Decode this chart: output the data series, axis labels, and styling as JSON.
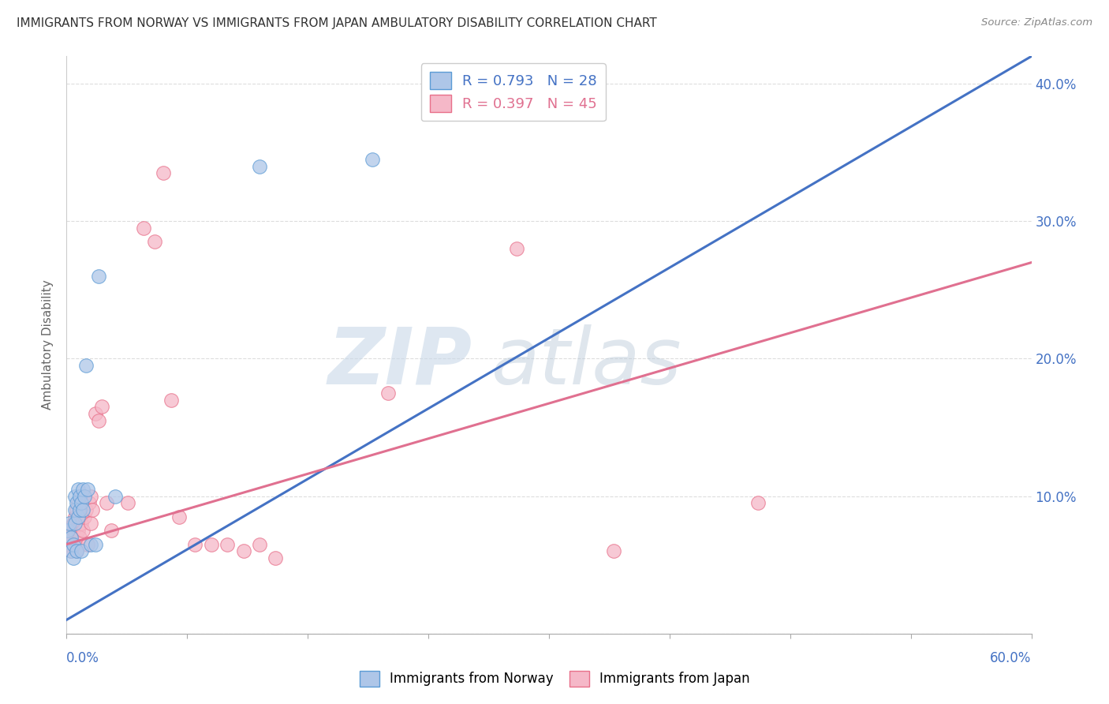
{
  "title": "IMMIGRANTS FROM NORWAY VS IMMIGRANTS FROM JAPAN AMBULATORY DISABILITY CORRELATION CHART",
  "source": "Source: ZipAtlas.com",
  "ylabel": "Ambulatory Disability",
  "xmin": 0.0,
  "xmax": 0.6,
  "ymin": 0.0,
  "ymax": 0.42,
  "ytick_vals": [
    0.0,
    0.1,
    0.2,
    0.3,
    0.4
  ],
  "ytick_labels": [
    "",
    "10.0%",
    "20.0%",
    "30.0%",
    "40.0%"
  ],
  "norway_fill_color": "#aec6e8",
  "norway_edge_color": "#5b9bd5",
  "japan_fill_color": "#f5b8c8",
  "japan_edge_color": "#e8708a",
  "norway_line_color": "#4472c4",
  "japan_line_color": "#e07090",
  "norway_R": 0.793,
  "norway_N": 28,
  "japan_R": 0.397,
  "japan_N": 45,
  "axis_label_color": "#4472c4",
  "title_color": "#333333",
  "source_color": "#888888",
  "background_color": "#ffffff",
  "grid_color": "#dddddd",
  "norway_line_x0": 0.0,
  "norway_line_y0": 0.01,
  "norway_line_x1": 0.6,
  "norway_line_y1": 0.42,
  "japan_line_x0": 0.0,
  "japan_line_y0": 0.065,
  "japan_line_x1": 0.6,
  "japan_line_y1": 0.27,
  "norway_scatter_x": [
    0.001,
    0.002,
    0.003,
    0.003,
    0.004,
    0.004,
    0.005,
    0.005,
    0.005,
    0.006,
    0.006,
    0.007,
    0.007,
    0.008,
    0.008,
    0.009,
    0.009,
    0.01,
    0.01,
    0.011,
    0.012,
    0.013,
    0.015,
    0.018,
    0.02,
    0.03,
    0.12,
    0.19
  ],
  "norway_scatter_y": [
    0.075,
    0.08,
    0.06,
    0.07,
    0.055,
    0.065,
    0.08,
    0.09,
    0.1,
    0.06,
    0.095,
    0.085,
    0.105,
    0.09,
    0.1,
    0.06,
    0.095,
    0.09,
    0.105,
    0.1,
    0.195,
    0.105,
    0.065,
    0.065,
    0.26,
    0.1,
    0.34,
    0.345
  ],
  "japan_scatter_x": [
    0.001,
    0.002,
    0.003,
    0.004,
    0.004,
    0.005,
    0.005,
    0.006,
    0.006,
    0.007,
    0.007,
    0.008,
    0.008,
    0.009,
    0.009,
    0.01,
    0.01,
    0.011,
    0.012,
    0.013,
    0.014,
    0.015,
    0.015,
    0.016,
    0.018,
    0.02,
    0.022,
    0.025,
    0.028,
    0.038,
    0.048,
    0.055,
    0.06,
    0.065,
    0.07,
    0.08,
    0.09,
    0.1,
    0.11,
    0.12,
    0.13,
    0.2,
    0.28,
    0.34,
    0.43
  ],
  "japan_scatter_y": [
    0.065,
    0.07,
    0.06,
    0.075,
    0.08,
    0.065,
    0.085,
    0.06,
    0.09,
    0.075,
    0.095,
    0.07,
    0.085,
    0.08,
    0.095,
    0.075,
    0.1,
    0.085,
    0.09,
    0.065,
    0.095,
    0.08,
    0.1,
    0.09,
    0.16,
    0.155,
    0.165,
    0.095,
    0.075,
    0.095,
    0.295,
    0.285,
    0.335,
    0.17,
    0.085,
    0.065,
    0.065,
    0.065,
    0.06,
    0.065,
    0.055,
    0.175,
    0.28,
    0.06,
    0.095
  ],
  "watermark_text": "ZIPatlas",
  "watermark_zip_color": "#c8d8e8",
  "watermark_atlas_color": "#b8c8d8"
}
